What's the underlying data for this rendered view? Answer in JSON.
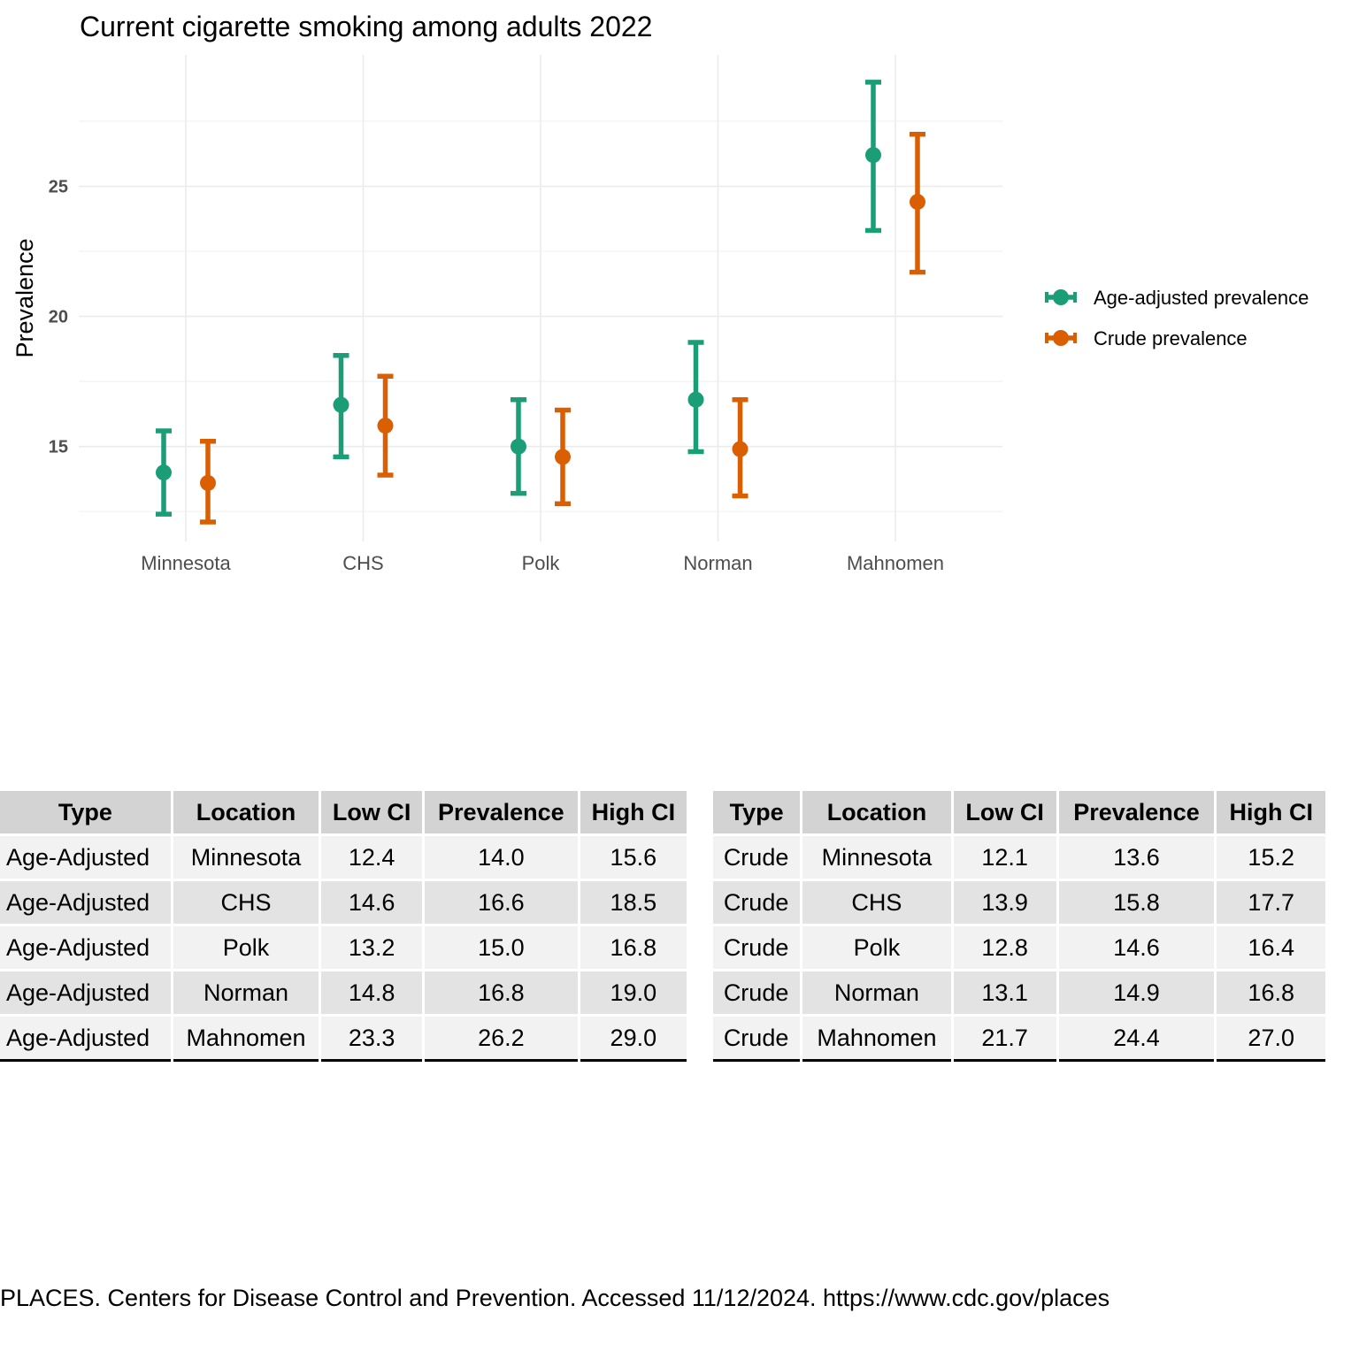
{
  "chart_data": {
    "type": "errorbar",
    "title": "Current cigarette smoking among adults 2022",
    "xlabel": "",
    "ylabel": "Prevalence",
    "categories": [
      "Minnesota",
      "CHS",
      "Polk",
      "Norman",
      "Mahnomen"
    ],
    "y_ticks": [
      15,
      20,
      25
    ],
    "ylim": [
      11.35,
      30.05
    ],
    "grid": true,
    "legend_position": "right",
    "series": [
      {
        "name": "Age-adjusted prevalence",
        "color": "#1b9e77",
        "values": [
          14.0,
          16.6,
          15.0,
          16.8,
          26.2
        ],
        "low": [
          12.4,
          14.6,
          13.2,
          14.8,
          23.3
        ],
        "high": [
          15.6,
          18.5,
          16.8,
          19.0,
          29.0
        ]
      },
      {
        "name": "Crude prevalence",
        "color": "#d95f02",
        "values": [
          13.6,
          15.8,
          14.6,
          14.9,
          24.4
        ],
        "low": [
          12.1,
          13.9,
          12.8,
          13.1,
          21.7
        ],
        "high": [
          15.2,
          17.7,
          16.4,
          16.8,
          27.0
        ]
      }
    ]
  },
  "tables": [
    {
      "headers": [
        "Type",
        "Location",
        "Low CI",
        "Prevalence",
        "High CI"
      ],
      "rows": [
        [
          "Age-Adjusted",
          "Minnesota",
          "12.4",
          "14.0",
          "15.6"
        ],
        [
          "Age-Adjusted",
          "CHS",
          "14.6",
          "16.6",
          "18.5"
        ],
        [
          "Age-Adjusted",
          "Polk",
          "13.2",
          "15.0",
          "16.8"
        ],
        [
          "Age-Adjusted",
          "Norman",
          "14.8",
          "16.8",
          "19.0"
        ],
        [
          "Age-Adjusted",
          "Mahnomen",
          "23.3",
          "26.2",
          "29.0"
        ]
      ]
    },
    {
      "headers": [
        "Type",
        "Location",
        "Low CI",
        "Prevalence",
        "High CI"
      ],
      "rows": [
        [
          "Crude",
          "Minnesota",
          "12.1",
          "13.6",
          "15.2"
        ],
        [
          "Crude",
          "CHS",
          "13.9",
          "15.8",
          "17.7"
        ],
        [
          "Crude",
          "Polk",
          "12.8",
          "14.6",
          "16.4"
        ],
        [
          "Crude",
          "Norman",
          "13.1",
          "14.9",
          "16.8"
        ],
        [
          "Crude",
          "Mahnomen",
          "21.7",
          "24.4",
          "27.0"
        ]
      ]
    }
  ],
  "caption": "PLACES. Centers for Disease Control and Prevention. Accessed 11/12/2024. https://www.cdc.gov/places"
}
